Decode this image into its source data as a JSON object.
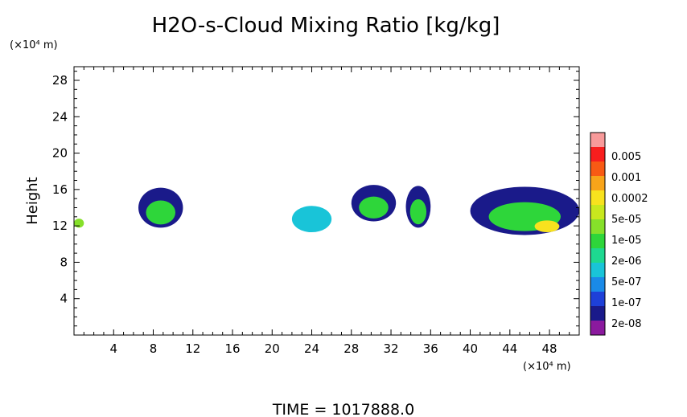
{
  "chart_data": {
    "type": "heatmap",
    "title": "H2O-s-Cloud Mixing Ratio [kg/kg]",
    "xlabel": "",
    "ylabel": "Height",
    "x_unit": "(×10⁴ m)",
    "y_unit": "(×10⁴ m)",
    "xlim": [
      0,
      51
    ],
    "ylim": [
      0,
      29.5
    ],
    "x_ticks": [
      4,
      8,
      12,
      16,
      20,
      24,
      28,
      32,
      36,
      40,
      44,
      48
    ],
    "y_ticks": [
      4,
      8,
      12,
      16,
      20,
      24,
      28
    ],
    "colorbar": {
      "colors": [
        "#8B1A9E",
        "#1A1A8A",
        "#1E40D8",
        "#1A8AE8",
        "#19C4D8",
        "#1ED890",
        "#2ED63A",
        "#86E02A",
        "#C8E81E",
        "#F8E21E",
        "#F8A41A",
        "#F85A14",
        "#F81E1E",
        "#F89A9A"
      ],
      "labels": [
        "2e-08",
        "1e-07",
        "5e-07",
        "2e-06",
        "1e-05",
        "5e-05",
        "0.0002",
        "0.001",
        "0.005"
      ]
    },
    "cloud_regions": [
      {
        "level": "1e-07",
        "color": "#1A1A8A",
        "x_range": [
          6.5,
          11.0
        ],
        "y_range": [
          11.8,
          16.2
        ]
      },
      {
        "level": "2e-06",
        "color": "#19C4D8",
        "x_range": [
          22.0,
          26.0
        ],
        "y_range": [
          11.3,
          14.2
        ]
      },
      {
        "level": "1e-07",
        "color": "#1A1A8A",
        "x_range": [
          28.0,
          32.5
        ],
        "y_range": [
          12.5,
          16.5
        ]
      },
      {
        "level": "1e-07",
        "color": "#1A1A8A",
        "x_range": [
          33.5,
          36.0
        ],
        "y_range": [
          11.8,
          16.4
        ]
      },
      {
        "level": "1e-07",
        "color": "#1A1A8A",
        "x_range": [
          40.0,
          51.0
        ],
        "y_range": [
          11.0,
          16.3
        ]
      },
      {
        "level": "0.0002",
        "color": "#F8E21E",
        "x_range": [
          46.5,
          49.0
        ],
        "y_range": [
          11.3,
          12.6
        ]
      },
      {
        "level": "5e-05",
        "color": "#86E02A",
        "x_range": [
          0.0,
          1.0
        ],
        "y_range": [
          11.8,
          12.8
        ]
      }
    ],
    "annotation": "TIME = 1017888.0"
  }
}
